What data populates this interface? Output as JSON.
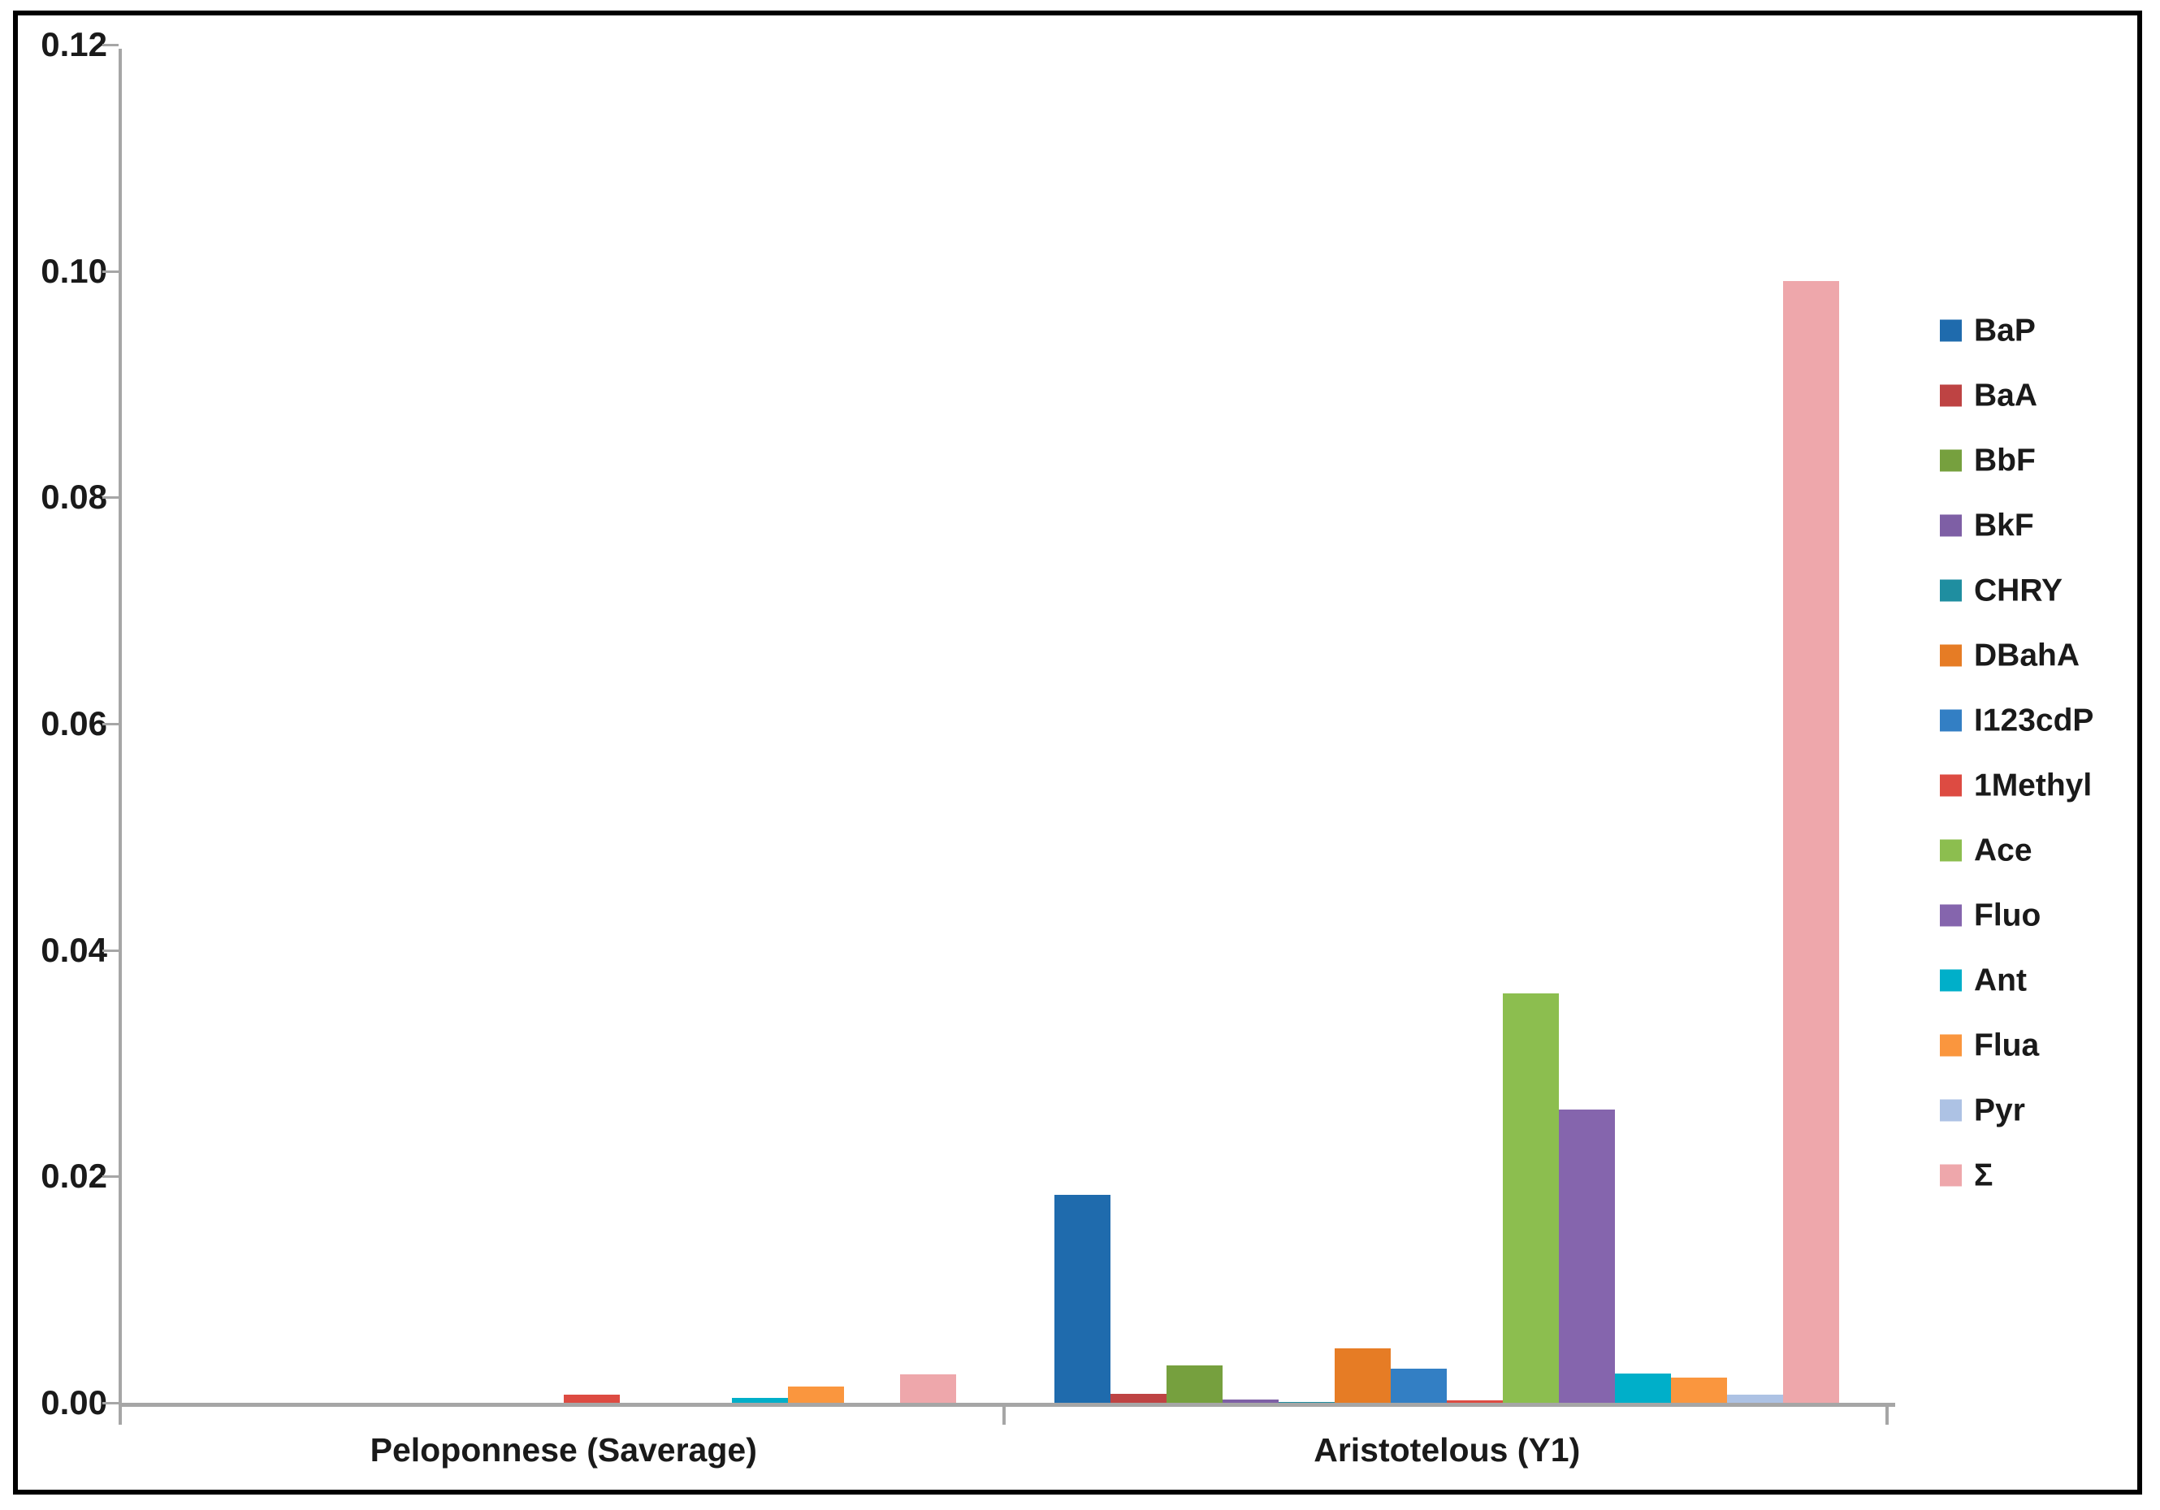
{
  "figure": {
    "background": "#ffffff",
    "frame_color": "#000000",
    "axis_color": "#a6a6a6",
    "text_color": "#1a1a1a"
  },
  "chart_data": {
    "type": "bar",
    "title": "",
    "xlabel": "",
    "ylabel": "",
    "grid": false,
    "legend_position": "right",
    "ylim": [
      0,
      0.12
    ],
    "yticks": [
      "0.00",
      "0.02",
      "0.04",
      "0.06",
      "0.08",
      "0.10",
      "0.12"
    ],
    "categories": [
      "Peloponnese (Saverage)",
      "Aristotelous (Y1)"
    ],
    "series": [
      {
        "name": "BaP",
        "color": "#1f6bad",
        "values": [
          0,
          0.0184
        ]
      },
      {
        "name": "BaA",
        "color": "#be4343",
        "values": [
          0,
          0.0008
        ]
      },
      {
        "name": "BbF",
        "color": "#76a03e",
        "values": [
          0,
          0.0033
        ]
      },
      {
        "name": "BkF",
        "color": "#7e5fa5",
        "values": [
          0,
          0.0003
        ]
      },
      {
        "name": "CHRY",
        "color": "#1f8ea0",
        "values": [
          0,
          0.0001
        ]
      },
      {
        "name": "DBahA",
        "color": "#e67c25",
        "values": [
          0,
          0.0048
        ]
      },
      {
        "name": "I123cdP",
        "color": "#337fc4",
        "values": [
          0,
          0.003
        ]
      },
      {
        "name": "1Methyl",
        "color": "#dd4b42",
        "values": [
          0.0007,
          0.0002
        ]
      },
      {
        "name": "Ace",
        "color": "#8cbe4f",
        "values": [
          0,
          0.0362
        ]
      },
      {
        "name": "Fluo",
        "color": "#8565ad",
        "values": [
          0,
          0.0259
        ]
      },
      {
        "name": "Ant",
        "color": "#00afc9",
        "values": [
          0.0004,
          0.0026
        ]
      },
      {
        "name": "Flua",
        "color": "#fa963e",
        "values": [
          0.0014,
          0.0022
        ]
      },
      {
        "name": "Pyr",
        "color": "#adc2e4",
        "values": [
          0,
          0.0007
        ]
      },
      {
        "name": "Σ",
        "color": "#eea7ab",
        "values": [
          0.0025,
          0.0991
        ]
      }
    ]
  }
}
